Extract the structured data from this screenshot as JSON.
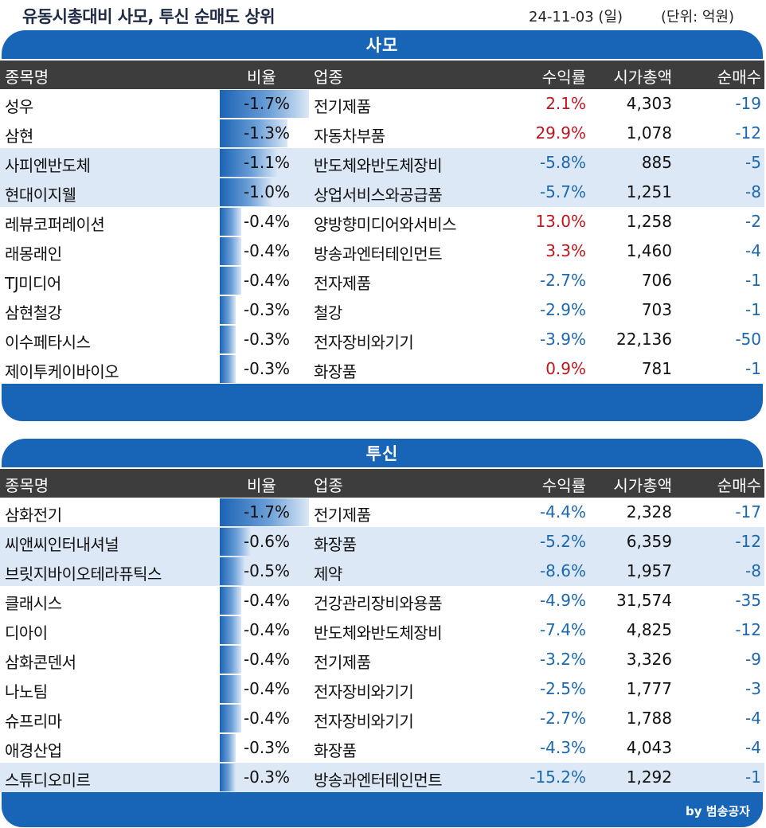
{
  "header": {
    "title": "유동시총대비 사모, 투신 순매도 상위",
    "date": "24-11-03 (일)",
    "unit": "(단위: 억원)"
  },
  "columns": {
    "name": "종목명",
    "ratio": "비율",
    "industry": "업종",
    "return": "수익률",
    "mcap": "시가총액",
    "net": "순매수"
  },
  "sections": [
    {
      "title": "사모",
      "rows": [
        {
          "name": "성우",
          "ratio": "-1.7%",
          "ratio_fill": 1.0,
          "industry": "전기제품",
          "return": "2.1%",
          "return_sign": "pos",
          "mcap": "4,303",
          "net": "-19"
        },
        {
          "name": "삼현",
          "ratio": "-1.3%",
          "ratio_fill": 0.76,
          "industry": "자동차부품",
          "return": "29.9%",
          "return_sign": "pos",
          "mcap": "1,078",
          "net": "-12"
        },
        {
          "name": "사피엔반도체",
          "ratio": "-1.1%",
          "ratio_fill": 0.65,
          "industry": "반도체와반도체장비",
          "return": "-5.8%",
          "return_sign": "neg",
          "mcap": "885",
          "net": "-5"
        },
        {
          "name": "현대이지웰",
          "ratio": "-1.0%",
          "ratio_fill": 0.59,
          "industry": "상업서비스와공급품",
          "return": "-5.7%",
          "return_sign": "neg",
          "mcap": "1,251",
          "net": "-8"
        },
        {
          "name": "레뷰코퍼레이션",
          "ratio": "-0.4%",
          "ratio_fill": 0.24,
          "industry": "양방향미디어와서비스",
          "return": "13.0%",
          "return_sign": "pos",
          "mcap": "1,258",
          "net": "-2"
        },
        {
          "name": "래몽래인",
          "ratio": "-0.4%",
          "ratio_fill": 0.24,
          "industry": "방송과엔터테인먼트",
          "return": "3.3%",
          "return_sign": "pos",
          "mcap": "1,460",
          "net": "-4"
        },
        {
          "name": "TJ미디어",
          "ratio": "-0.4%",
          "ratio_fill": 0.24,
          "industry": "전자제품",
          "return": "-2.7%",
          "return_sign": "neg",
          "mcap": "706",
          "net": "-1"
        },
        {
          "name": "삼현철강",
          "ratio": "-0.3%",
          "ratio_fill": 0.18,
          "industry": "철강",
          "return": "-2.9%",
          "return_sign": "neg",
          "mcap": "703",
          "net": "-1"
        },
        {
          "name": "이수페타시스",
          "ratio": "-0.3%",
          "ratio_fill": 0.18,
          "industry": "전자장비와기기",
          "return": "-3.9%",
          "return_sign": "neg",
          "mcap": "22,136",
          "net": "-50"
        },
        {
          "name": "제이투케이바이오",
          "ratio": "-0.3%",
          "ratio_fill": 0.18,
          "industry": "화장품",
          "return": "0.9%",
          "return_sign": "pos",
          "mcap": "781",
          "net": "-1"
        }
      ]
    },
    {
      "title": "투신",
      "rows": [
        {
          "name": "삼화전기",
          "ratio": "-1.7%",
          "ratio_fill": 1.0,
          "industry": "전기제품",
          "return": "-4.4%",
          "return_sign": "neg",
          "mcap": "2,328",
          "net": "-17"
        },
        {
          "name": "씨앤씨인터내셔널",
          "ratio": "-0.6%",
          "ratio_fill": 0.35,
          "industry": "화장품",
          "return": "-5.2%",
          "return_sign": "neg",
          "mcap": "6,359",
          "net": "-12"
        },
        {
          "name": "브릿지바이오테라퓨틱스",
          "ratio": "-0.5%",
          "ratio_fill": 0.29,
          "industry": "제약",
          "return": "-8.6%",
          "return_sign": "neg",
          "mcap": "1,957",
          "net": "-8"
        },
        {
          "name": "클래시스",
          "ratio": "-0.4%",
          "ratio_fill": 0.24,
          "industry": "건강관리장비와용품",
          "return": "-4.9%",
          "return_sign": "neg",
          "mcap": "31,574",
          "net": "-35"
        },
        {
          "name": "디아이",
          "ratio": "-0.4%",
          "ratio_fill": 0.24,
          "industry": "반도체와반도체장비",
          "return": "-7.4%",
          "return_sign": "neg",
          "mcap": "4,825",
          "net": "-12"
        },
        {
          "name": "삼화콘덴서",
          "ratio": "-0.4%",
          "ratio_fill": 0.24,
          "industry": "전기제품",
          "return": "-3.2%",
          "return_sign": "neg",
          "mcap": "3,326",
          "net": "-9"
        },
        {
          "name": "나노팀",
          "ratio": "-0.4%",
          "ratio_fill": 0.24,
          "industry": "전자장비와기기",
          "return": "-2.5%",
          "return_sign": "neg",
          "mcap": "1,777",
          "net": "-3"
        },
        {
          "name": "슈프리마",
          "ratio": "-0.4%",
          "ratio_fill": 0.24,
          "industry": "전자장비와기기",
          "return": "-2.7%",
          "return_sign": "neg",
          "mcap": "1,788",
          "net": "-4"
        },
        {
          "name": "애경산업",
          "ratio": "-0.3%",
          "ratio_fill": 0.18,
          "industry": "화장품",
          "return": "-4.3%",
          "return_sign": "neg",
          "mcap": "4,043",
          "net": "-4"
        },
        {
          "name": "스튜디오미르",
          "ratio": "-0.3%",
          "ratio_fill": 0.18,
          "industry": "방송과엔터테인먼트",
          "return": "-15.2%",
          "return_sign": "neg",
          "mcap": "1,292",
          "net": "-1"
        }
      ]
    }
  ],
  "credit": "by 범송공자",
  "colors": {
    "accent": "#1865b8",
    "header_bg": "#3d3d3d",
    "alt_row": "#dce8f5",
    "positive": "#c0151c",
    "negative": "#1c68b0"
  }
}
